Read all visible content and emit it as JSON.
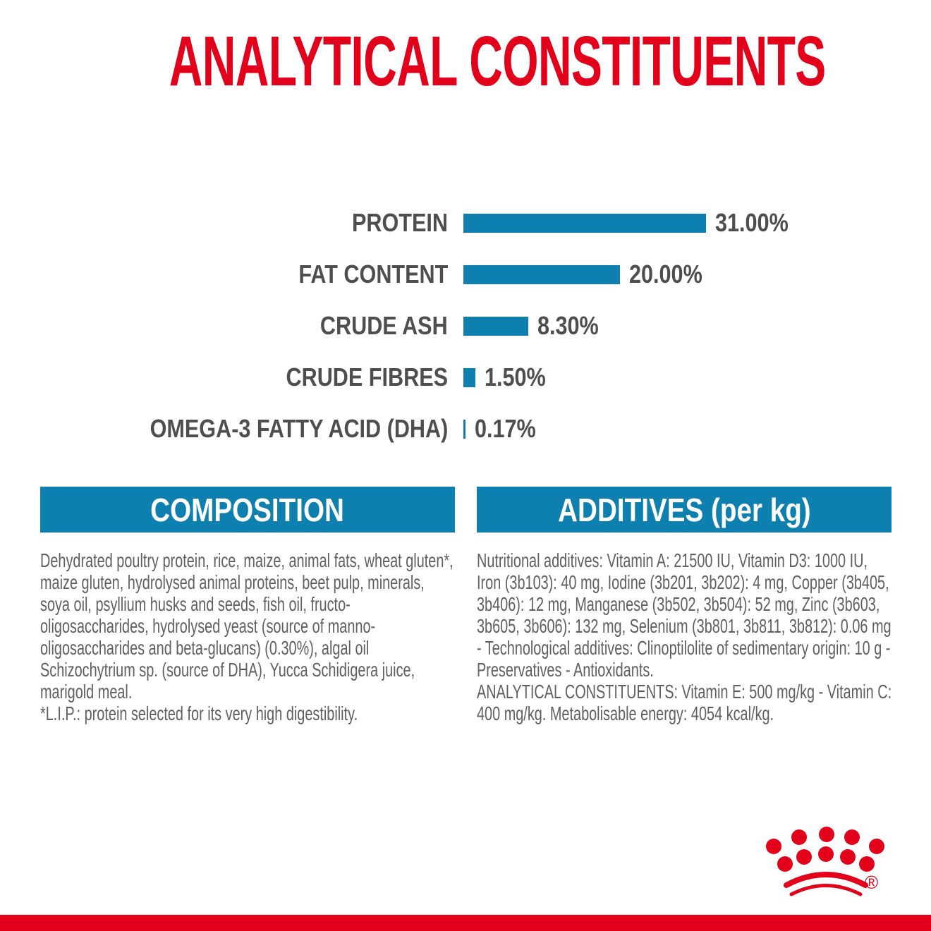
{
  "page": {
    "title": "ANALYTICAL CONSTITUENTS"
  },
  "chart_data": {
    "type": "bar",
    "orientation": "horizontal",
    "unit": "%",
    "categories": [
      "PROTEIN",
      "FAT CONTENT",
      "CRUDE ASH",
      "CRUDE FIBRES",
      "OMEGA-3 FATTY ACID (DHA)"
    ],
    "values": [
      31.0,
      20.0,
      8.3,
      1.5,
      0.17
    ],
    "value_labels": [
      "31.00%",
      "20.00%",
      "8.30%",
      "1.50%",
      "0.17%"
    ],
    "xlim": [
      0,
      31
    ],
    "grid": "off",
    "legend": "none",
    "bar_color": "#0e80b0",
    "title": "ANALYTICAL CONSTITUENTS"
  },
  "composition": {
    "header": "COMPOSITION",
    "body": "Dehydrated poultry protein, rice, maize, animal fats, wheat gluten*, maize gluten, hydrolysed animal proteins, beet pulp, minerals, soya oil, psyllium husks and seeds, fish oil, fructo-oligosaccharides, hydrolysed yeast (source of manno-oligosaccharides and beta-glucans) (0.30%), algal oil Schizochytrium sp. (source of DHA), Yucca Schidigera juice, marigold meal.",
    "footnote": "*L.I.P.: protein selected for its very high digestibility."
  },
  "additives": {
    "header": "ADDITIVES (per kg)",
    "body": "Nutritional additives: Vitamin A: 21500 IU, Vitamin D3: 1000 IU, Iron (3b103): 40 mg, Iodine (3b201, 3b202): 4 mg, Copper (3b405, 3b406): 12 mg, Manganese (3b502, 3b504): 52 mg, Zinc (3b603, 3b605, 3b606): 132 mg, Selenium (3b801, 3b811, 3b812): 0.06 mg - Technological additives: Clinoptilolite of sedimentary origin: 10 g - Preservatives - Antioxidants.",
    "analytical": "ANALYTICAL CONSTITUENTS: Vitamin E: 500 mg/kg - Vitamin C: 400 mg/kg. Metabolisable energy: 4054 kcal/kg."
  },
  "branding": {
    "logo": "royal-canin-crown",
    "registered_mark": "®"
  },
  "colors": {
    "red": "#e2001a",
    "blue": "#0e80b0",
    "label_gray": "#4e4e50",
    "body_gray": "#5f5f61",
    "background": "#ffffff"
  }
}
